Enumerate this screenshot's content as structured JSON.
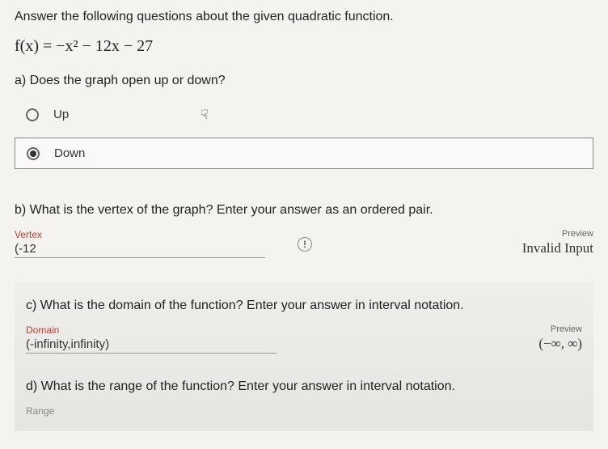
{
  "instruction": "Answer the following questions about the given quadratic function.",
  "equation": "f(x) = −x² − 12x − 27",
  "partA": {
    "question": "a) Does the graph open up or down?",
    "option1": "Up",
    "option2": "Down",
    "cursor": "☟"
  },
  "partB": {
    "question": "b) What is the vertex of the graph? Enter your answer as an ordered pair.",
    "fieldLabel": "Vertex",
    "fieldValue": "(-12",
    "warnGlyph": "!",
    "previewLabel": "Preview",
    "previewValue": "Invalid Input"
  },
  "partC": {
    "question": "c) What is the domain of the function? Enter your answer in interval notation.",
    "fieldLabel": "Domain",
    "fieldValue": "(-infinity,infinity)",
    "previewLabel": "Preview",
    "previewValue": "(−∞, ∞)"
  },
  "partD": {
    "question": "d) What is the range of the function? Enter your answer in interval notation.",
    "fieldLabel": "Range"
  }
}
